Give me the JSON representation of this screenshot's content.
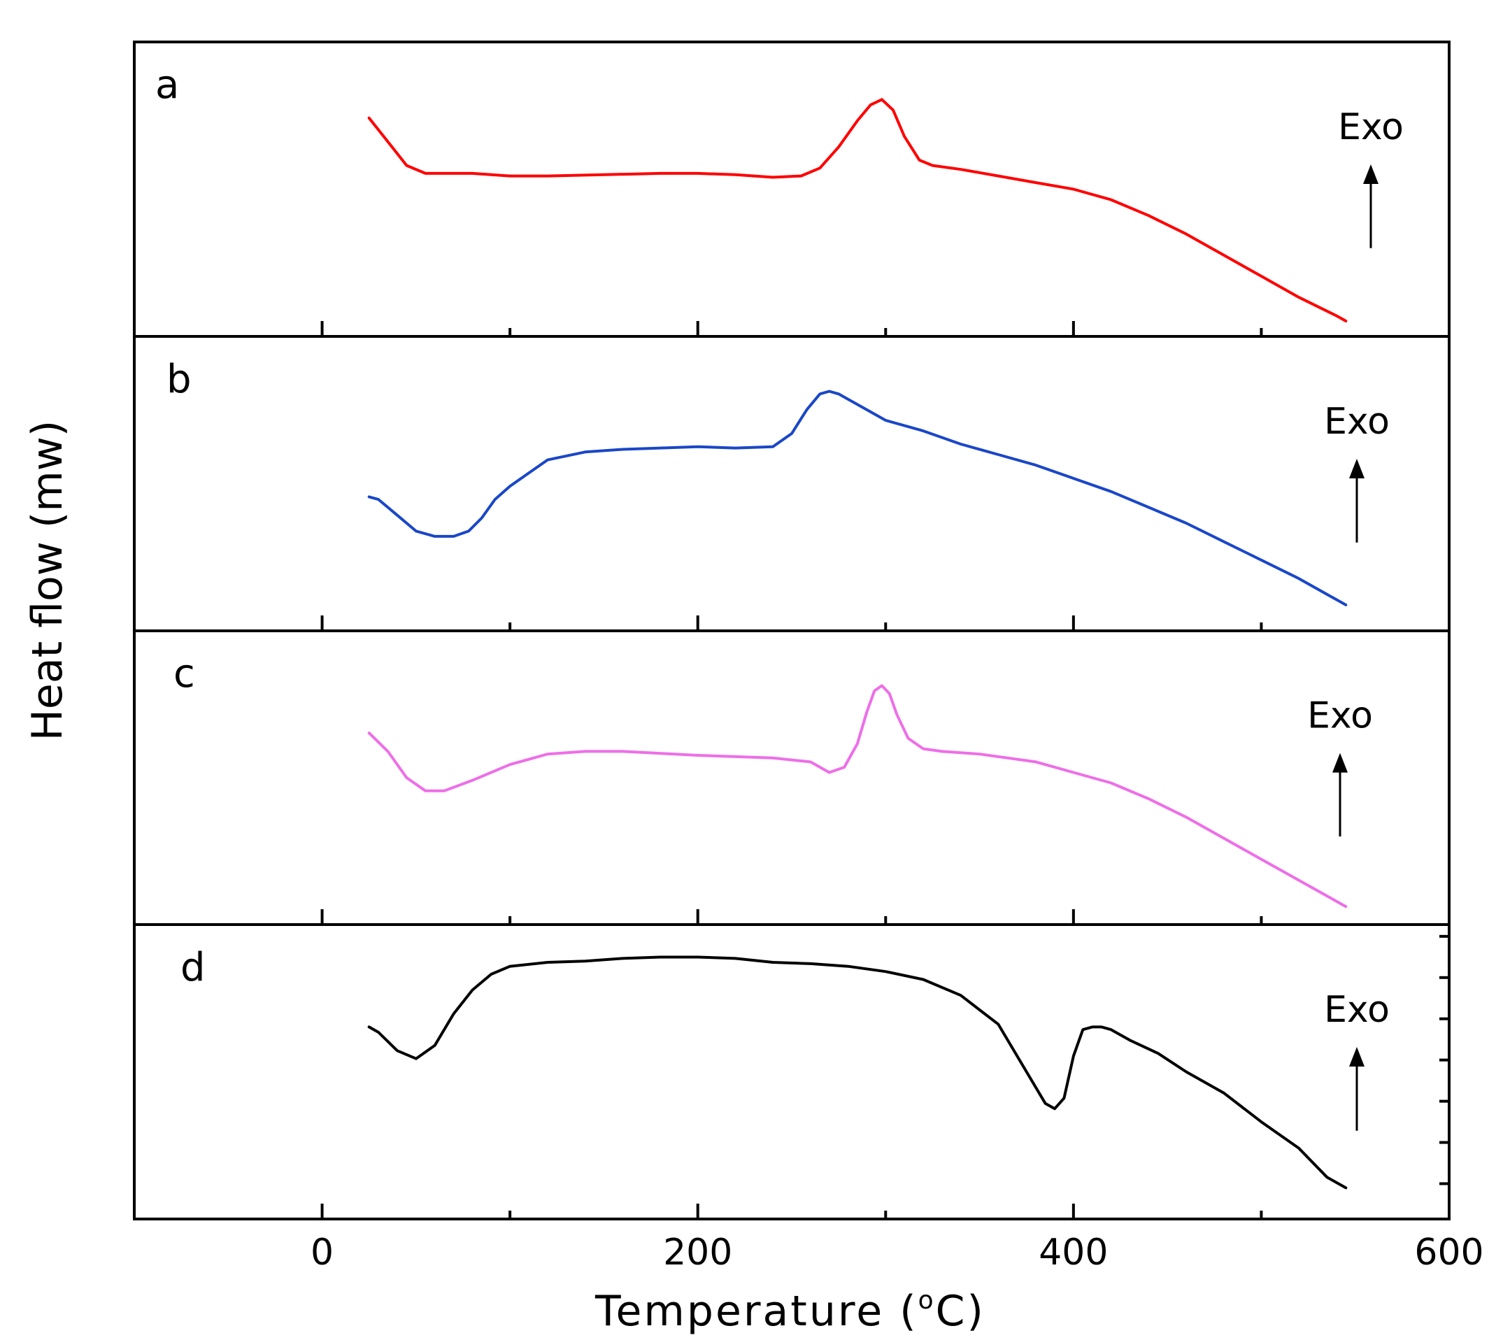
{
  "chart_data": {
    "type": "line",
    "title": "",
    "xlabel": "Temperature (°C)",
    "xlabel_main": "Temperature (",
    "xlabel_sup": "o",
    "xlabel_unit": "C)",
    "ylabel": "Heat flow (mw)",
    "xlim": [
      -100,
      600
    ],
    "x_ticks": [
      0,
      200,
      400,
      600
    ],
    "x_tick_labels": [
      "0",
      "200",
      "400",
      "600"
    ],
    "exo_label": "Exo",
    "panels": [
      {
        "label": "a",
        "color": "#ff0000",
        "ylim": [
          0,
          100
        ],
        "x": [
          25,
          35,
          45,
          55,
          65,
          80,
          90,
          100,
          120,
          150,
          180,
          200,
          220,
          240,
          255,
          265,
          275,
          285,
          292,
          298,
          304,
          310,
          318,
          325,
          340,
          360,
          380,
          400,
          420,
          440,
          460,
          480,
          500,
          520,
          540,
          545
        ],
        "y": [
          77,
          68,
          59,
          56,
          56,
          56,
          55.5,
          55,
          55,
          55.5,
          56,
          56,
          55.5,
          54.5,
          55,
          58,
          66,
          76,
          82,
          84,
          80,
          70,
          61,
          59,
          57.5,
          55,
          52.5,
          50,
          46,
          40,
          33,
          25,
          17,
          9,
          2,
          0
        ]
      },
      {
        "label": "b",
        "color": "#1a47c8",
        "ylim": [
          0,
          100
        ],
        "x": [
          25,
          30,
          40,
          50,
          60,
          70,
          78,
          85,
          92,
          100,
          110,
          120,
          140,
          160,
          200,
          220,
          240,
          250,
          258,
          265,
          270,
          275,
          280,
          290,
          300,
          320,
          340,
          360,
          380,
          400,
          420,
          440,
          460,
          480,
          500,
          520,
          540,
          545
        ],
        "y": [
          45,
          44,
          38,
          32,
          30,
          30,
          32,
          37,
          44,
          49,
          54,
          59,
          62,
          63,
          64,
          63.5,
          64,
          69,
          78,
          84,
          85,
          84,
          82,
          78,
          74,
          70,
          65,
          61,
          57,
          52,
          47,
          41,
          35,
          28,
          21,
          14,
          6,
          4
        ]
      },
      {
        "label": "c",
        "color": "#ee6ee8",
        "ylim": [
          0,
          100
        ],
        "x": [
          25,
          35,
          45,
          55,
          65,
          80,
          100,
          120,
          140,
          160,
          200,
          240,
          260,
          270,
          278,
          285,
          290,
          294,
          298,
          302,
          306,
          312,
          320,
          330,
          350,
          380,
          400,
          420,
          440,
          460,
          480,
          500,
          520,
          540,
          545
        ],
        "y": [
          67,
          60,
          50,
          45,
          45,
          49,
          55,
          59,
          60,
          60,
          58.5,
          57.5,
          56,
          52,
          54,
          63,
          75,
          83,
          85,
          82,
          74,
          65,
          61,
          60,
          59,
          56,
          52,
          48,
          42,
          35,
          27,
          19,
          11,
          3,
          1
        ]
      },
      {
        "label": "d",
        "color": "#000000",
        "ylim": [
          0,
          100
        ],
        "x": [
          25,
          30,
          40,
          50,
          60,
          70,
          80,
          90,
          100,
          120,
          140,
          160,
          180,
          200,
          220,
          240,
          260,
          280,
          300,
          320,
          340,
          360,
          375,
          385,
          390,
          395,
          400,
          405,
          410,
          415,
          420,
          430,
          445,
          460,
          480,
          500,
          520,
          535,
          545
        ],
        "y": [
          67,
          65,
          58,
          55,
          60,
          72,
          81,
          87,
          90,
          91.5,
          92,
          93,
          93.5,
          93.5,
          93,
          91.5,
          91,
          90,
          88,
          85,
          79,
          68,
          50,
          38,
          36,
          40,
          56,
          66,
          67,
          67,
          66,
          62,
          57,
          50,
          42,
          31,
          21,
          10,
          6
        ]
      }
    ]
  }
}
